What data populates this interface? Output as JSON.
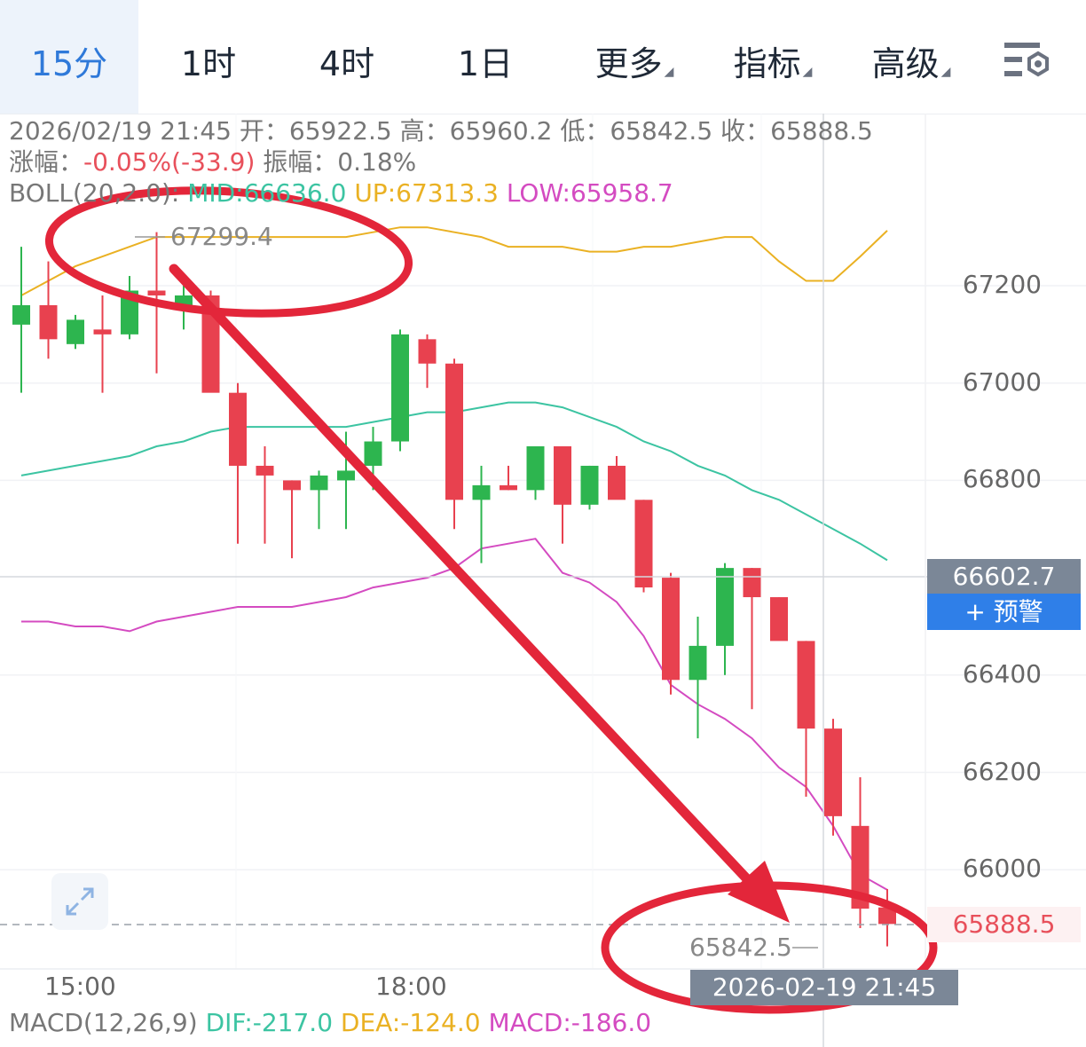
{
  "tabs": [
    {
      "label": "15分",
      "active": true
    },
    {
      "label": "1时",
      "active": false
    },
    {
      "label": "4时",
      "active": false
    },
    {
      "label": "1日",
      "active": false
    },
    {
      "label": "更多",
      "active": false
    },
    {
      "label": "指标",
      "active": false
    },
    {
      "label": "高级",
      "active": false
    }
  ],
  "info": {
    "datetime": "2026/02/19 21:45",
    "open_label": "开：",
    "open": "65922.5",
    "high_label": "高：",
    "high": "65960.2",
    "low_label": "低：",
    "low": "65842.5",
    "close_label": "收：",
    "close": "65888.5",
    "change_label": "涨幅：",
    "change": "-0.05%(-33.9)",
    "amp_label": "振幅：",
    "amp": "0.18%"
  },
  "boll": {
    "label": "BOLL(20,2.0):",
    "mid": "MID:66636.0",
    "up": "UP:67313.3",
    "low": "LOW:65958.7"
  },
  "price_tag": "66602.7",
  "alert_button": "+ 预警",
  "last_price": "65888.5",
  "crosshair_time": "2026-02-19 21:45",
  "max_annotation": "67299.4",
  "min_annotation": "65842.5",
  "macd": {
    "label": "MACD(12,26,9)",
    "dif": "DIF:-217.0",
    "dea": "DEA:-124.0",
    "macd": "MACD:-186.0"
  },
  "colors": {
    "up": "#2db54f",
    "down": "#e8414f",
    "mid": "#3cc4a2",
    "upper": "#eab123",
    "lower": "#d44bc1",
    "annotation": "#e3263a"
  },
  "chart_data": {
    "type": "candlestick",
    "ylim": [
      65700,
      67450
    ],
    "y_ticks": [
      67200,
      67000,
      66800,
      66400,
      66200,
      66000
    ],
    "x_ticks": [
      "15:00",
      "18:00"
    ],
    "candles": [
      {
        "o": 67120,
        "h": 67280,
        "l": 66980,
        "c": 67160
      },
      {
        "o": 67160,
        "h": 67250,
        "l": 67050,
        "c": 67090
      },
      {
        "o": 67080,
        "h": 67140,
        "l": 67070,
        "c": 67130
      },
      {
        "o": 67110,
        "h": 67180,
        "l": 66980,
        "c": 67100
      },
      {
        "o": 67100,
        "h": 67220,
        "l": 67090,
        "c": 67190
      },
      {
        "o": 67190,
        "h": 67310,
        "l": 67020,
        "c": 67180
      },
      {
        "o": 67160,
        "h": 67200,
        "l": 67110,
        "c": 67180
      },
      {
        "o": 67180,
        "h": 67190,
        "l": 66990,
        "c": 66980
      },
      {
        "o": 66980,
        "h": 67000,
        "l": 66670,
        "c": 66830
      },
      {
        "o": 66830,
        "h": 66870,
        "l": 66670,
        "c": 66810
      },
      {
        "o": 66800,
        "h": 66800,
        "l": 66640,
        "c": 66780
      },
      {
        "o": 66780,
        "h": 66820,
        "l": 66700,
        "c": 66810
      },
      {
        "o": 66800,
        "h": 66900,
        "l": 66700,
        "c": 66820
      },
      {
        "o": 66830,
        "h": 66910,
        "l": 66780,
        "c": 66880
      },
      {
        "o": 66880,
        "h": 67110,
        "l": 66860,
        "c": 67100
      },
      {
        "o": 67090,
        "h": 67100,
        "l": 66990,
        "c": 67040
      },
      {
        "o": 67040,
        "h": 67050,
        "l": 66700,
        "c": 66760
      },
      {
        "o": 66760,
        "h": 66830,
        "l": 66630,
        "c": 66790
      },
      {
        "o": 66790,
        "h": 66830,
        "l": 66780,
        "c": 66780
      },
      {
        "o": 66780,
        "h": 66860,
        "l": 66760,
        "c": 66870
      },
      {
        "o": 66870,
        "h": 66870,
        "l": 66670,
        "c": 66750
      },
      {
        "o": 66750,
        "h": 66830,
        "l": 66740,
        "c": 66830
      },
      {
        "o": 66830,
        "h": 66850,
        "l": 66770,
        "c": 66760
      },
      {
        "o": 66760,
        "h": 66760,
        "l": 66570,
        "c": 66580
      },
      {
        "o": 66600,
        "h": 66610,
        "l": 66360,
        "c": 66390
      },
      {
        "o": 66390,
        "h": 66520,
        "l": 66270,
        "c": 66460
      },
      {
        "o": 66460,
        "h": 66630,
        "l": 66400,
        "c": 66620
      },
      {
        "o": 66620,
        "h": 66620,
        "l": 66330,
        "c": 66560
      },
      {
        "o": 66560,
        "h": 66560,
        "l": 66480,
        "c": 66470
      },
      {
        "o": 66470,
        "h": 66470,
        "l": 66150,
        "c": 66290
      },
      {
        "o": 66290,
        "h": 66310,
        "l": 66070,
        "c": 66110
      },
      {
        "o": 66090,
        "h": 66190,
        "l": 65880,
        "c": 65920
      },
      {
        "o": 65922.5,
        "h": 65960.2,
        "l": 65842.5,
        "c": 65888.5
      }
    ],
    "boll_up": [
      67180,
      67210,
      67240,
      67260,
      67280,
      67300,
      67300,
      67300,
      67300,
      67300,
      67300,
      67300,
      67300,
      67310,
      67320,
      67320,
      67310,
      67300,
      67280,
      67280,
      67280,
      67270,
      67270,
      67280,
      67280,
      67290,
      67300,
      67300,
      67250,
      67210,
      67210,
      67260,
      67313.3
    ],
    "boll_mid": [
      66810,
      66820,
      66830,
      66840,
      66850,
      66870,
      66880,
      66900,
      66910,
      66910,
      66910,
      66910,
      66910,
      66920,
      66930,
      66940,
      66940,
      66950,
      66960,
      66960,
      66950,
      66930,
      66910,
      66880,
      66860,
      66830,
      66810,
      66780,
      66760,
      66730,
      66700,
      66670,
      66636.0
    ],
    "boll_low": [
      66510,
      66510,
      66500,
      66500,
      66490,
      66510,
      66520,
      66530,
      66540,
      66540,
      66540,
      66550,
      66560,
      66580,
      66590,
      66600,
      66620,
      66660,
      66670,
      66680,
      66610,
      66590,
      66550,
      66480,
      66380,
      66340,
      66310,
      66270,
      66210,
      66170,
      66090,
      65990,
      65958.7
    ]
  }
}
